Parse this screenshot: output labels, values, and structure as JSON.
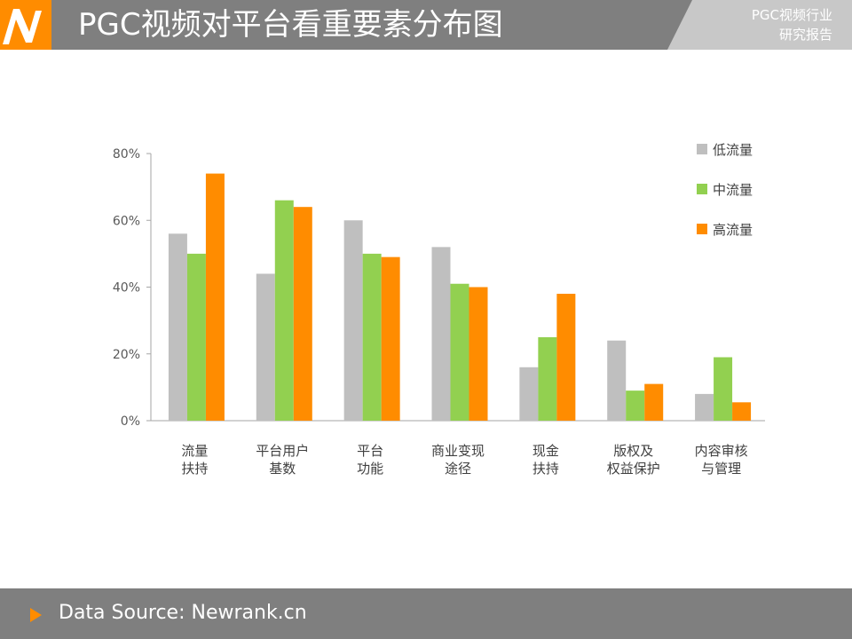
{
  "header": {
    "title": "PGC视频对平台看重要素分布图",
    "tag_line1": "PGC视频行业",
    "tag_line2": "研究报告",
    "logo_icon": "newrank-n-logo-icon"
  },
  "footer": {
    "source": "Data Source: Newrank.cn",
    "play_icon": "play-triangle-icon"
  },
  "colors": {
    "header_gray": "#7f7f7f",
    "accent_orange": "#ff8c00",
    "low": "#bfbfbf",
    "mid": "#92d050",
    "high": "#ff8c00"
  },
  "chart_data": {
    "type": "bar",
    "categories": [
      [
        "流量",
        "扶持"
      ],
      [
        "平台用户",
        "基数"
      ],
      [
        "平台",
        "功能"
      ],
      [
        "商业变现",
        "途径"
      ],
      [
        "现金",
        "扶持"
      ],
      [
        "版权及",
        "权益保护"
      ],
      [
        "内容审核",
        "与管理"
      ]
    ],
    "series": [
      {
        "name": "低流量",
        "color": "#bfbfbf",
        "values": [
          56,
          44,
          60,
          52,
          16,
          24,
          8
        ]
      },
      {
        "name": "中流量",
        "color": "#92d050",
        "values": [
          50,
          66,
          50,
          41,
          25,
          9,
          19
        ]
      },
      {
        "name": "高流量",
        "color": "#ff8c00",
        "values": [
          74,
          64,
          49,
          40,
          38,
          11,
          5.5
        ]
      }
    ],
    "ylim": [
      0,
      80
    ],
    "yticks": [
      "0%",
      "20%",
      "40%",
      "60%",
      "80%"
    ],
    "legend_position": "top-right",
    "grid": false
  }
}
